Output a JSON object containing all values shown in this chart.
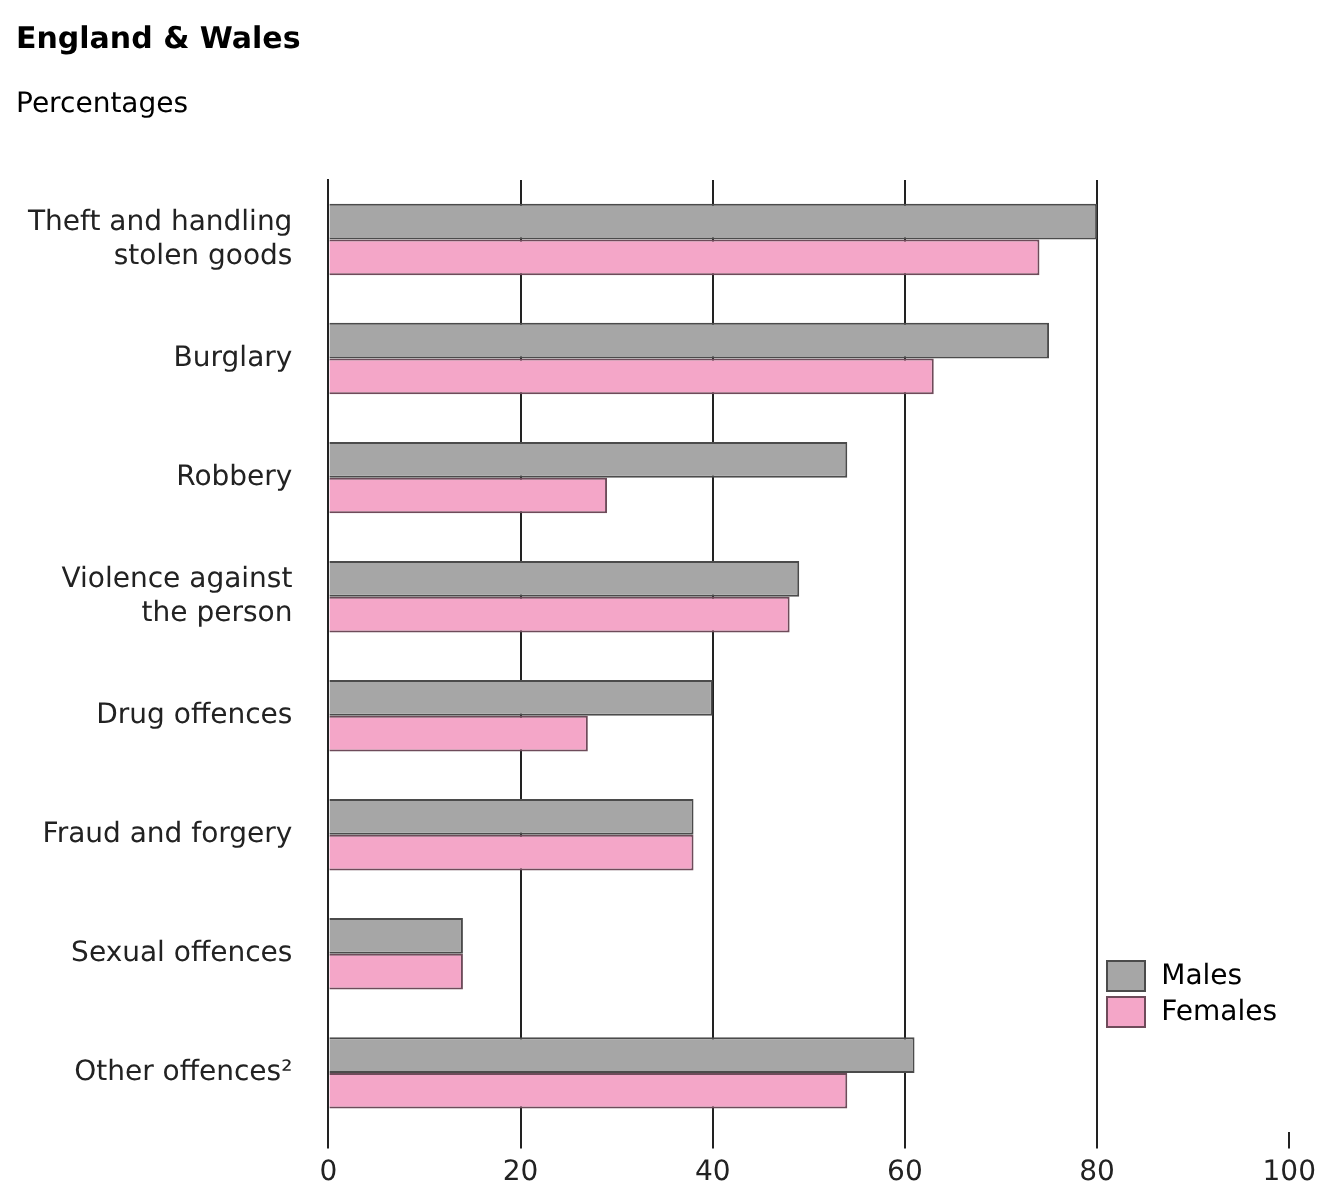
{
  "chart_data": {
    "type": "bar",
    "orientation": "horizontal",
    "title": "England & Wales",
    "subtitle": "Percentages",
    "categories": [
      "Theft and handling stolen goods",
      "Burglary",
      "Robbery",
      "Violence against the person",
      "Drug offences",
      "Fraud and forgery",
      "Sexual offences",
      "Other offences²"
    ],
    "series": [
      {
        "name": "Males",
        "color": "#a6a6a6",
        "values": [
          80,
          75,
          54,
          49,
          40,
          38,
          14,
          61
        ]
      },
      {
        "name": "Females",
        "color": "#f4a6c8",
        "values": [
          74,
          63,
          29,
          48,
          27,
          38,
          14,
          54
        ]
      }
    ],
    "xlim": [
      0,
      100
    ],
    "xticks": [
      0,
      20,
      40,
      60,
      80,
      100
    ],
    "grid": "x",
    "legend": "bottom right"
  }
}
